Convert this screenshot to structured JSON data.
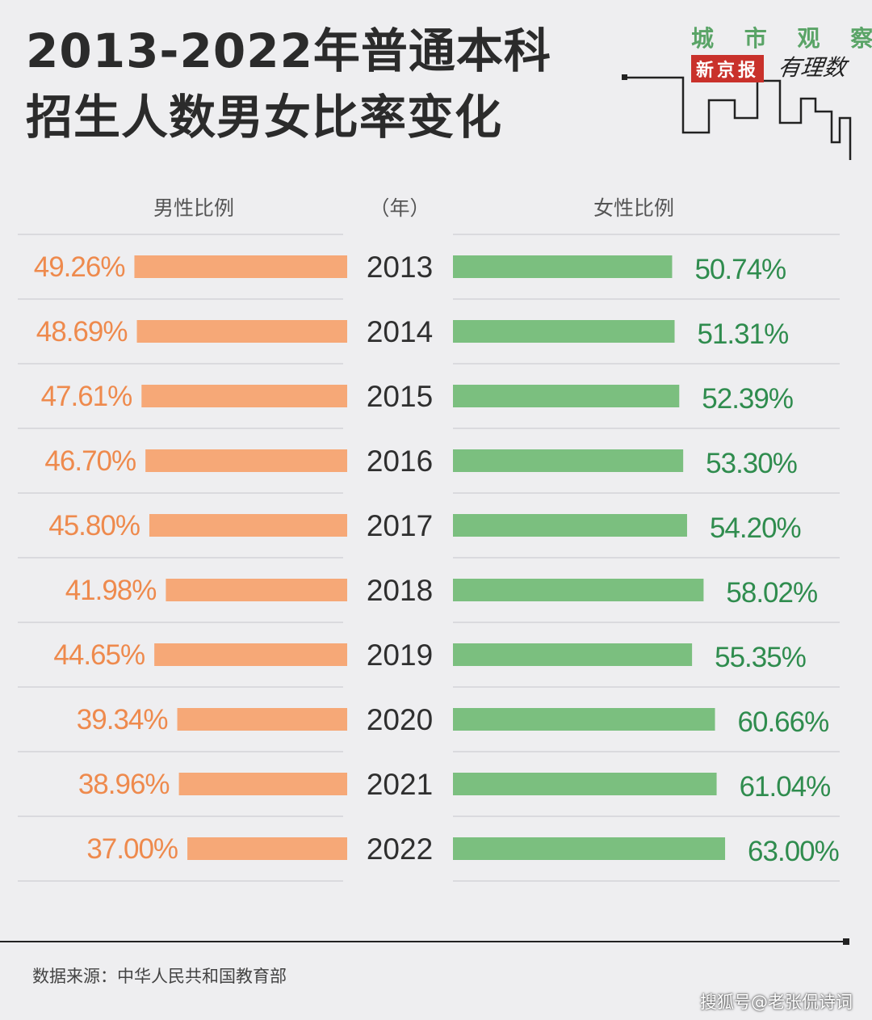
{
  "title": {
    "line1": "2013-2022年普通本科",
    "line2": "招生人数男女比率变化"
  },
  "brand": {
    "top": "城 市 观 察",
    "news": "新京报",
    "script": "有理数"
  },
  "chart_data": {
    "type": "bar",
    "column_headers": {
      "male": "男性比例",
      "year": "（年）",
      "female": "女性比例"
    },
    "categories": [
      "2013",
      "2014",
      "2015",
      "2016",
      "2017",
      "2018",
      "2019",
      "2020",
      "2021",
      "2022"
    ],
    "series": [
      {
        "name": "男性比例",
        "color": "#f6a877",
        "label_color": "#ee8a4d",
        "values": [
          49.26,
          48.69,
          47.61,
          46.7,
          45.8,
          41.98,
          44.65,
          39.34,
          38.96,
          37.0
        ],
        "labels": [
          "49.26%",
          "48.69%",
          "47.61%",
          "46.70%",
          "45.80%",
          "41.98%",
          "44.65%",
          "39.34%",
          "38.96%",
          "37.00%"
        ]
      },
      {
        "name": "女性比例",
        "color": "#7bbf7f",
        "label_color": "#2f8c4e",
        "values": [
          50.74,
          51.31,
          52.39,
          53.3,
          54.2,
          58.02,
          55.35,
          60.66,
          61.04,
          63.0
        ],
        "labels": [
          "50.74%",
          "51.31%",
          "52.39%",
          "53.30%",
          "54.20%",
          "58.02%",
          "55.35%",
          "60.66%",
          "61.04%",
          "63.00%"
        ]
      }
    ]
  },
  "source": "数据来源：中华人民共和国教育部",
  "watermark": "搜狐号@老张侃诗词"
}
